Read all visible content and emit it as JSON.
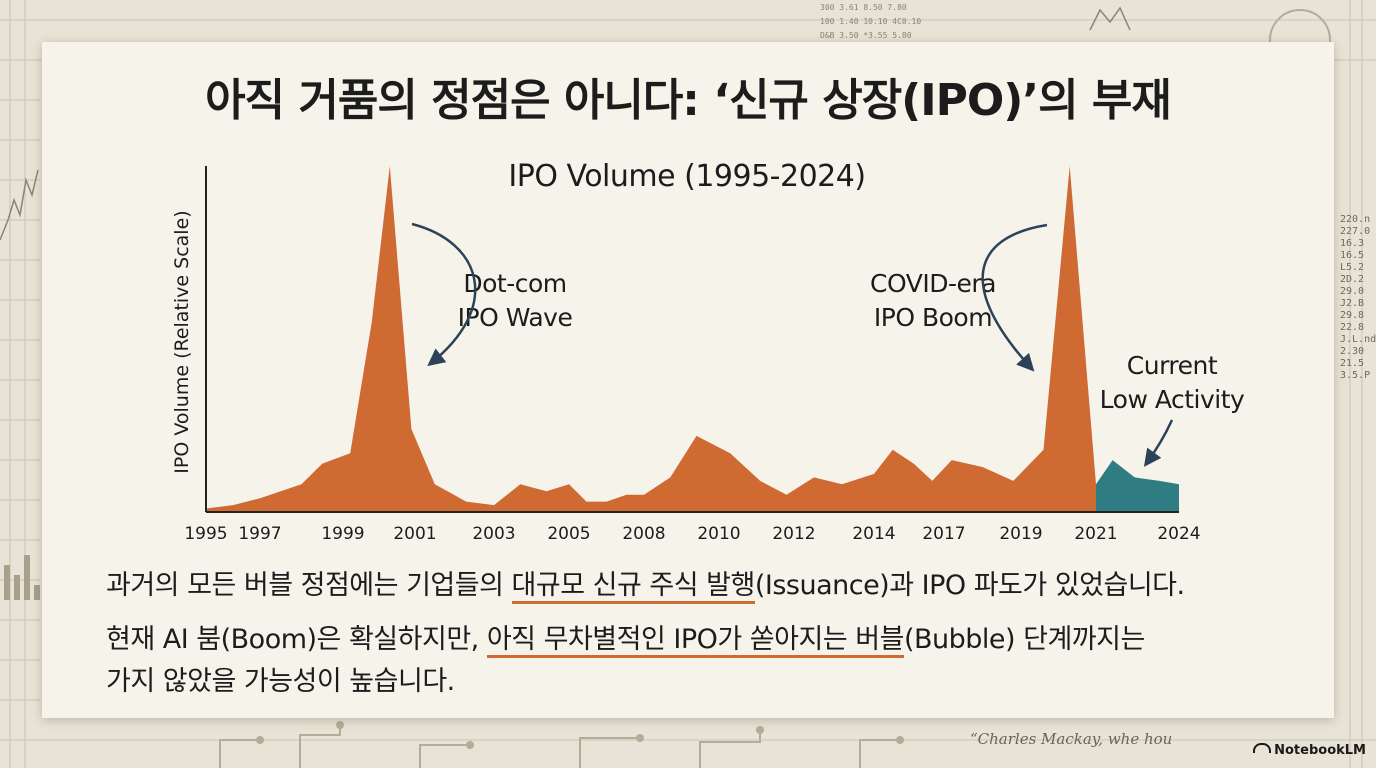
{
  "slide": {
    "title": "아직 거품의 정점은 아니다: ‘신규 상장(IPO)’의 부재",
    "paragraph1": {
      "before": "과거의 모든 버블 정점에는 기업들의 ",
      "underlined": "대규모 신규 주식 발행",
      "after": "(Issuance)과 IPO 파도가 있었습니다."
    },
    "paragraph2": {
      "before": "현재 AI 붐(Boom)은 확실하지만, ",
      "underlined": "아직 무차별적인 IPO가 쏟아지는 버블",
      "after": "(Bubble) 단계까지는",
      "line2": "가지 않았을 가능성이 높습니다."
    }
  },
  "background": {
    "quote": "“Charles Mackay, whe hou",
    "table_numbers": [
      "220.n",
      "227.0",
      "16.3",
      "16.5",
      "L5.2",
      "2D.2",
      "29.0",
      "J2.B",
      "29.8",
      "22.8",
      "J.L.nd",
      "2.30",
      "21.5",
      "3.5.P"
    ]
  },
  "brand": "NotebookLM",
  "colors": {
    "historical": "#cf6a33",
    "current": "#2f7d82",
    "axis": "#222222",
    "annotation_arrow": "#2c4357"
  },
  "chart_data": {
    "type": "area",
    "title": "IPO Volume (1995-2024)",
    "xlabel": "",
    "ylabel": "IPO Volume (Relative Scale)",
    "x_ticks": [
      "1995",
      "1997",
      "1999",
      "2001",
      "2003",
      "2005",
      "2008",
      "2010",
      "2012",
      "2014",
      "2017",
      "2019",
      "2021",
      "2024"
    ],
    "ylim": [
      0,
      100
    ],
    "series": [
      {
        "segment": "historical",
        "color": "#cf6a33",
        "points": [
          [
            1995.0,
            1
          ],
          [
            1996.0,
            2
          ],
          [
            1997.0,
            4
          ],
          [
            1998.0,
            8
          ],
          [
            1998.5,
            14
          ],
          [
            1999.2,
            17
          ],
          [
            1999.8,
            55
          ],
          [
            2000.3,
            100
          ],
          [
            2000.9,
            24
          ],
          [
            2001.5,
            8
          ],
          [
            2002.3,
            3
          ],
          [
            2003.0,
            2
          ],
          [
            2003.7,
            8
          ],
          [
            2004.4,
            6
          ],
          [
            2005.0,
            8
          ],
          [
            2005.7,
            3
          ],
          [
            2006.5,
            3
          ],
          [
            2007.3,
            5
          ],
          [
            2008.0,
            5
          ],
          [
            2008.7,
            10
          ],
          [
            2009.4,
            22
          ],
          [
            2010.3,
            17
          ],
          [
            2011.1,
            9
          ],
          [
            2011.8,
            5
          ],
          [
            2012.5,
            10
          ],
          [
            2013.2,
            8
          ],
          [
            2014.0,
            11
          ],
          [
            2014.8,
            18
          ],
          [
            2015.7,
            14
          ],
          [
            2016.5,
            9
          ],
          [
            2017.2,
            15
          ],
          [
            2018.0,
            13
          ],
          [
            2018.8,
            9
          ],
          [
            2019.6,
            18
          ],
          [
            2020.3,
            100
          ],
          [
            2021.0,
            8
          ]
        ]
      },
      {
        "segment": "current",
        "color": "#2f7d82",
        "points": [
          [
            2021.0,
            8
          ],
          [
            2021.6,
            15
          ],
          [
            2022.4,
            10
          ],
          [
            2023.3,
            9
          ],
          [
            2024.0,
            8
          ]
        ]
      }
    ],
    "annotations": [
      {
        "lines": [
          "Dot-com",
          "IPO Wave"
        ],
        "points_to": "2000 peak"
      },
      {
        "lines": [
          "COVID-era",
          "IPO Boom"
        ],
        "points_to": "2020 peak"
      },
      {
        "lines": [
          "Current",
          "Low Activity"
        ],
        "points_to": "2021-2024"
      }
    ]
  }
}
